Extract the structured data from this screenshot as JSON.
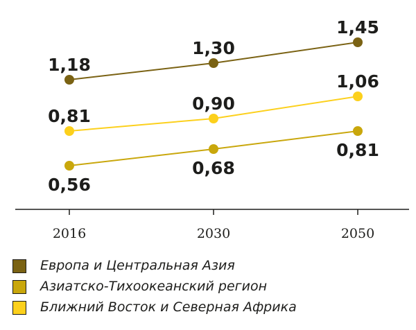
{
  "chart_data": {
    "type": "line",
    "x": [
      "2016",
      "2030",
      "2050"
    ],
    "series": [
      {
        "name": "Европа и Центральная Азия",
        "values": [
          1.18,
          1.3,
          1.45
        ],
        "labels": [
          "1,18",
          "1,30",
          "1,45"
        ],
        "color": "#7a6213",
        "label_position": "above"
      },
      {
        "name": "Азиатско-Тихоокеанский регион",
        "values": [
          0.56,
          0.68,
          0.81
        ],
        "labels": [
          "0,56",
          "0,68",
          "0,81"
        ],
        "color": "#c9a70c",
        "label_position": "below"
      },
      {
        "name": "Ближний Восток и Северная Африка",
        "values": [
          0.81,
          0.9,
          1.06
        ],
        "labels": [
          "0,81",
          "0,90",
          "1,06"
        ],
        "color": "#fcd01c",
        "label_position": "above"
      }
    ],
    "axis_color": "#1d1d1b",
    "grid": false,
    "legend_position": "bottom-left"
  }
}
